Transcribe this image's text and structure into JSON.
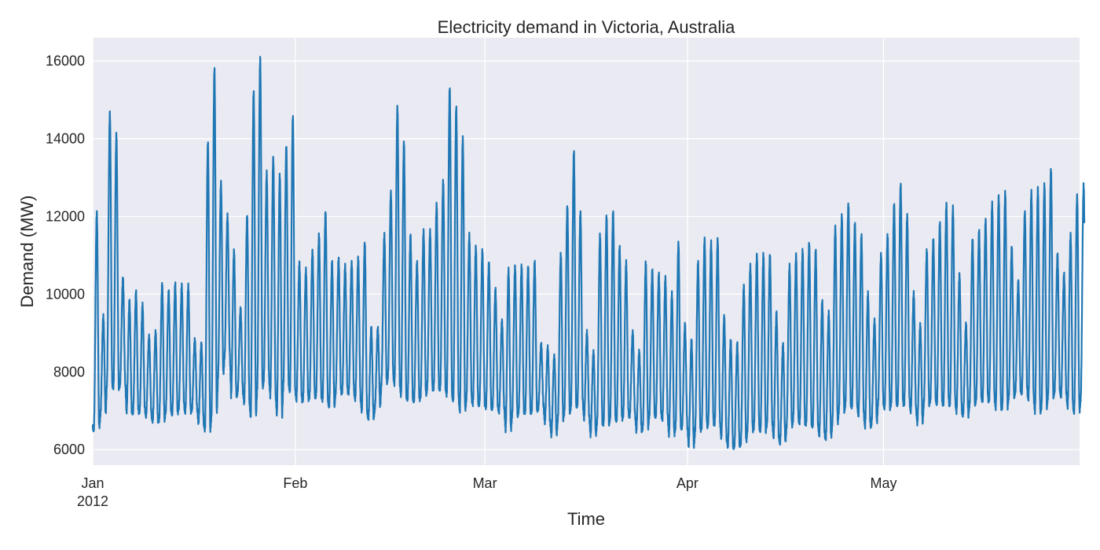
{
  "chart_data": {
    "type": "line",
    "title": "Electricity demand in Victoria, Australia",
    "xlabel": "Time",
    "ylabel": "Demand (MW)",
    "xlim": [
      "2012-01-01",
      "2012-05-31"
    ],
    "ylim": [
      5600,
      16600
    ],
    "y_ticks": [
      6000,
      8000,
      10000,
      12000,
      14000,
      16000
    ],
    "x_ticks": [
      {
        "date": "2012-01-01",
        "label": "Jan",
        "sublabel": "2012"
      },
      {
        "date": "2012-02-01",
        "label": "Feb",
        "sublabel": ""
      },
      {
        "date": "2012-03-01",
        "label": "Mar",
        "sublabel": ""
      },
      {
        "date": "2012-04-01",
        "label": "Apr",
        "sublabel": ""
      },
      {
        "date": "2012-05-01",
        "label": "May",
        "sublabel": ""
      }
    ],
    "grid": true,
    "series": [
      {
        "color": "#1f77b4",
        "x": [
          "2012-01-01",
          "2012-01-02",
          "2012-01-03",
          "2012-01-04",
          "2012-01-05",
          "2012-01-06",
          "2012-01-07",
          "2012-01-08",
          "2012-01-09",
          "2012-01-10",
          "2012-01-11",
          "2012-01-12",
          "2012-01-13",
          "2012-01-14",
          "2012-01-15",
          "2012-01-16",
          "2012-01-17",
          "2012-01-18",
          "2012-01-19",
          "2012-01-20",
          "2012-01-21",
          "2012-01-22",
          "2012-01-23",
          "2012-01-24",
          "2012-01-25",
          "2012-01-26",
          "2012-01-27",
          "2012-01-28",
          "2012-01-29",
          "2012-01-30",
          "2012-01-31",
          "2012-02-01",
          "2012-02-02",
          "2012-02-03",
          "2012-02-04",
          "2012-02-05",
          "2012-02-06",
          "2012-02-07",
          "2012-02-08",
          "2012-02-09",
          "2012-02-10",
          "2012-02-11",
          "2012-02-12",
          "2012-02-13",
          "2012-02-14",
          "2012-02-15",
          "2012-02-16",
          "2012-02-17",
          "2012-02-18",
          "2012-02-19",
          "2012-02-20",
          "2012-02-21",
          "2012-02-22",
          "2012-02-23",
          "2012-02-24",
          "2012-02-25",
          "2012-02-26",
          "2012-02-27",
          "2012-02-28",
          "2012-02-29",
          "2012-03-01",
          "2012-03-02",
          "2012-03-03",
          "2012-03-04",
          "2012-03-05",
          "2012-03-06",
          "2012-03-07",
          "2012-03-08",
          "2012-03-09",
          "2012-03-10",
          "2012-03-11",
          "2012-03-12",
          "2012-03-13",
          "2012-03-14",
          "2012-03-15",
          "2012-03-16",
          "2012-03-17",
          "2012-03-18",
          "2012-03-19",
          "2012-03-20",
          "2012-03-21",
          "2012-03-22",
          "2012-03-23",
          "2012-03-24",
          "2012-03-25",
          "2012-03-26",
          "2012-03-27",
          "2012-03-28",
          "2012-03-29",
          "2012-03-30",
          "2012-03-31",
          "2012-04-01",
          "2012-04-02",
          "2012-04-03",
          "2012-04-04",
          "2012-04-05",
          "2012-04-06",
          "2012-04-07",
          "2012-04-08",
          "2012-04-09",
          "2012-04-10",
          "2012-04-11",
          "2012-04-12",
          "2012-04-13",
          "2012-04-14",
          "2012-04-15",
          "2012-04-16",
          "2012-04-17",
          "2012-04-18",
          "2012-04-19",
          "2012-04-20",
          "2012-04-21",
          "2012-04-22",
          "2012-04-23",
          "2012-04-24",
          "2012-04-25",
          "2012-04-26",
          "2012-04-27",
          "2012-04-28",
          "2012-04-29",
          "2012-04-30",
          "2012-05-01",
          "2012-05-02",
          "2012-05-03",
          "2012-05-04",
          "2012-05-05",
          "2012-05-06",
          "2012-05-07",
          "2012-05-08",
          "2012-05-09",
          "2012-05-10",
          "2012-05-11",
          "2012-05-12",
          "2012-05-13",
          "2012-05-14",
          "2012-05-15",
          "2012-05-16",
          "2012-05-17",
          "2012-05-18",
          "2012-05-19",
          "2012-05-20",
          "2012-05-21",
          "2012-05-22",
          "2012-05-23",
          "2012-05-24",
          "2012-05-25",
          "2012-05-26",
          "2012-05-27",
          "2012-05-28",
          "2012-05-29",
          "2012-05-30",
          "2012-05-31"
        ],
        "daily_min": [
          6550,
          6900,
          7700,
          7600,
          7700,
          6950,
          7000,
          7000,
          6900,
          6750,
          6800,
          7000,
          6950,
          7100,
          7000,
          7050,
          6700,
          6500,
          6900,
          7900,
          8400,
          7400,
          7500,
          7200,
          6850,
          7600,
          7800,
          7400,
          6900,
          7700,
          7500,
          7300,
          7300,
          7400,
          7400,
          7300,
          7100,
          7500,
          7500,
          7500,
          7300,
          7000,
          6800,
          7100,
          7700,
          7900,
          7700,
          7400,
          7300,
          7300,
          7400,
          7600,
          7600,
          7600,
          7400,
          7300,
          7000,
          7300,
          7200,
          7200,
          7100,
          7100,
          7000,
          6500,
          6900,
          7000,
          7000,
          7000,
          7100,
          6700,
          6400,
          6800,
          7000,
          7100,
          7200,
          6800,
          6400,
          6700,
          6700,
          6800,
          6800,
          6900,
          6900,
          6500,
          6600,
          6900,
          6900,
          6800,
          6400,
          6600,
          6600,
          6100,
          6500,
          6600,
          6700,
          6700,
          6300,
          6100,
          6100,
          6200,
          6500,
          6600,
          6500,
          6700,
          6300,
          6200,
          6600,
          6800,
          6700,
          6700,
          6600,
          6400,
          6300,
          6700,
          7000,
          7200,
          7100,
          6900,
          6600,
          6700,
          7200,
          7100,
          7200,
          7200,
          7200,
          7000,
          6700,
          7200,
          7300,
          7200,
          7200,
          7200,
          7000,
          6900,
          7200,
          7300,
          7300,
          7300,
          7100,
          7100,
          7400,
          7500,
          7500,
          7300,
          7000,
          7100,
          7400,
          7500,
          7400,
          7100,
          7000,
          7300
        ],
        "daily_max": [
          12100,
          9400,
          14650,
          14100,
          10400,
          9800,
          10050,
          9700,
          8900,
          9000,
          10250,
          10050,
          10250,
          10200,
          10200,
          8800,
          8700,
          13900,
          15800,
          12850,
          12000,
          11100,
          9600,
          12000,
          15200,
          16050,
          13100,
          13500,
          13050,
          13800,
          14550,
          10800,
          10600,
          11100,
          11500,
          12100,
          10800,
          10900,
          10700,
          10800,
          10900,
          11300,
          9100,
          9100,
          11500,
          12600,
          14800,
          13900,
          11500,
          10800,
          11600,
          11600,
          12300,
          12900,
          15300,
          14800,
          14000,
          11500,
          11200,
          11100,
          10800,
          10100,
          9300,
          10600,
          10700,
          10700,
          10700,
          10800,
          8700,
          8600,
          8400,
          11000,
          12250,
          13650,
          12100,
          9000,
          8500,
          11500,
          12000,
          12100,
          11200,
          10800,
          9000,
          8500,
          10800,
          10600,
          10500,
          10400,
          10000,
          11300,
          9200,
          8800,
          10800,
          11400,
          11300,
          11400,
          9400,
          8800,
          8700,
          10200,
          10700,
          11000,
          11000,
          11000,
          9500,
          8700,
          10700,
          11000,
          11100,
          11300,
          11100,
          9800,
          9500,
          11700,
          12000,
          12300,
          11800,
          11500,
          10000,
          9300,
          11000,
          11500,
          12300,
          12800,
          12000,
          10000,
          9200,
          11100,
          11400,
          11800,
          12300,
          12200,
          10500,
          9200,
          11400,
          11600,
          11900,
          12300,
          12500,
          12600,
          11200,
          10300,
          12100,
          12600,
          12700,
          12800,
          13200,
          11000,
          10500,
          11500,
          12500,
          12800
        ]
      }
    ]
  }
}
